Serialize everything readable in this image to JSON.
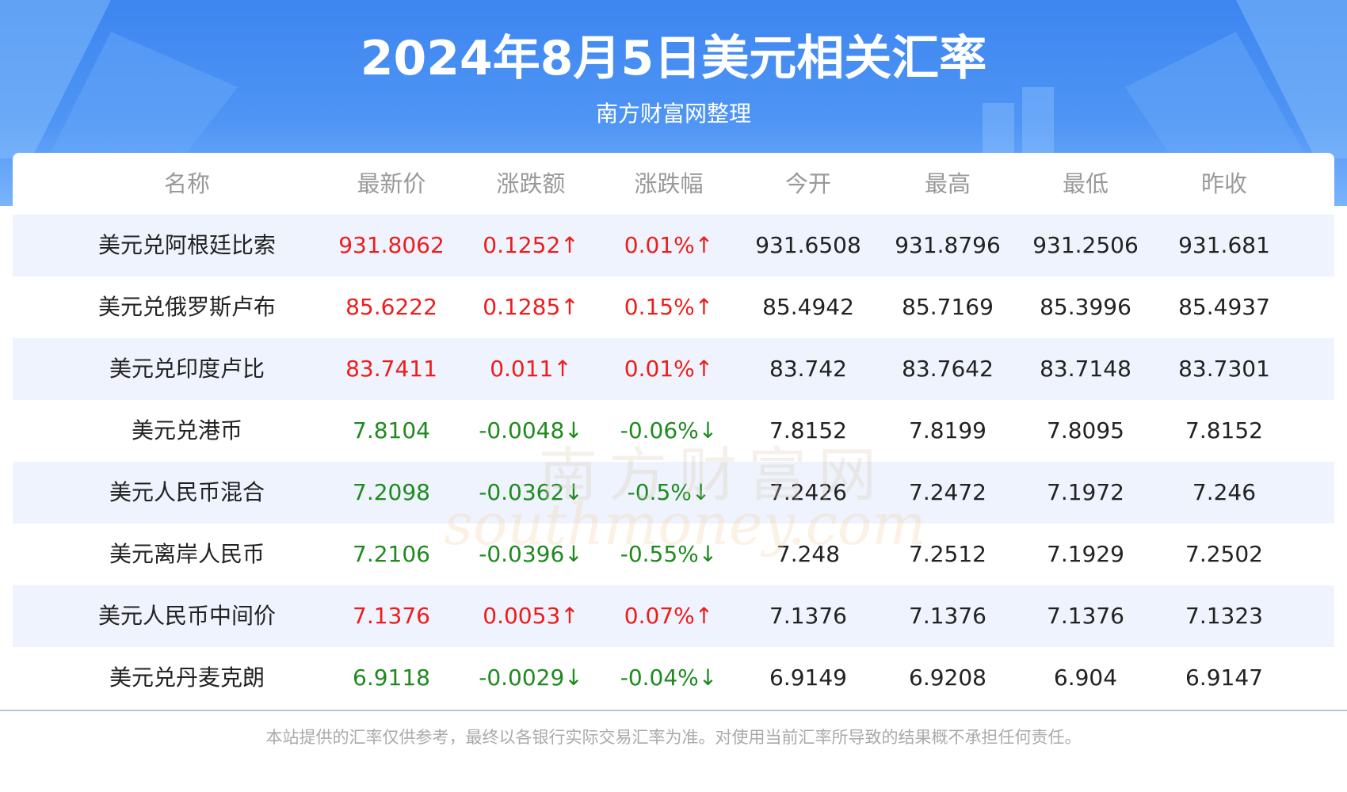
{
  "header": {
    "title": "2024年8月5日美元相关汇率",
    "subtitle": "南方财富网整理"
  },
  "table": {
    "columns": [
      "名称",
      "最新价",
      "涨跌额",
      "涨跌幅",
      "今开",
      "最高",
      "最低",
      "昨收"
    ],
    "rows": [
      [
        "美元兑阿根廷比索",
        "931.8062",
        "0.1252↑",
        "0.01%↑",
        "931.6508",
        "931.8796",
        "931.2506",
        "931.681"
      ],
      [
        "美元兑俄罗斯卢布",
        "85.6222",
        "0.1285↑",
        "0.15%↑",
        "85.4942",
        "85.7169",
        "85.3996",
        "85.4937"
      ],
      [
        "美元兑印度卢比",
        "83.7411",
        "0.011↑",
        "0.01%↑",
        "83.742",
        "83.7642",
        "83.7148",
        "83.7301"
      ],
      [
        "美元兑港币",
        "7.8104",
        "-0.0048↓",
        "-0.06%↓",
        "7.8152",
        "7.8199",
        "7.8095",
        "7.8152"
      ],
      [
        "美元人民币混合",
        "7.2098",
        "-0.0362↓",
        "-0.5%↓",
        "7.2426",
        "7.2472",
        "7.1972",
        "7.246"
      ],
      [
        "美元离岸人民币",
        "7.2106",
        "-0.0396↓",
        "-0.55%↓",
        "7.248",
        "7.2512",
        "7.1929",
        "7.2502"
      ],
      [
        "美元人民币中间价",
        "7.1376",
        "0.0053↑",
        "0.07%↑",
        "7.1376",
        "7.1376",
        "7.1376",
        "7.1323"
      ],
      [
        "美元兑丹麦克朗",
        "6.9118",
        "-0.0029↓",
        "-0.04%↓",
        "6.9149",
        "6.9208",
        "6.904",
        "6.9147"
      ]
    ]
  },
  "watermark": {
    "cn": "南方财富网",
    "en": "southmoney.com"
  },
  "footer": "本站提供的汇率仅供参考，最终以各银行实际交易汇率为准。对使用当前汇率所导致的结果概不承担任何责任。"
}
